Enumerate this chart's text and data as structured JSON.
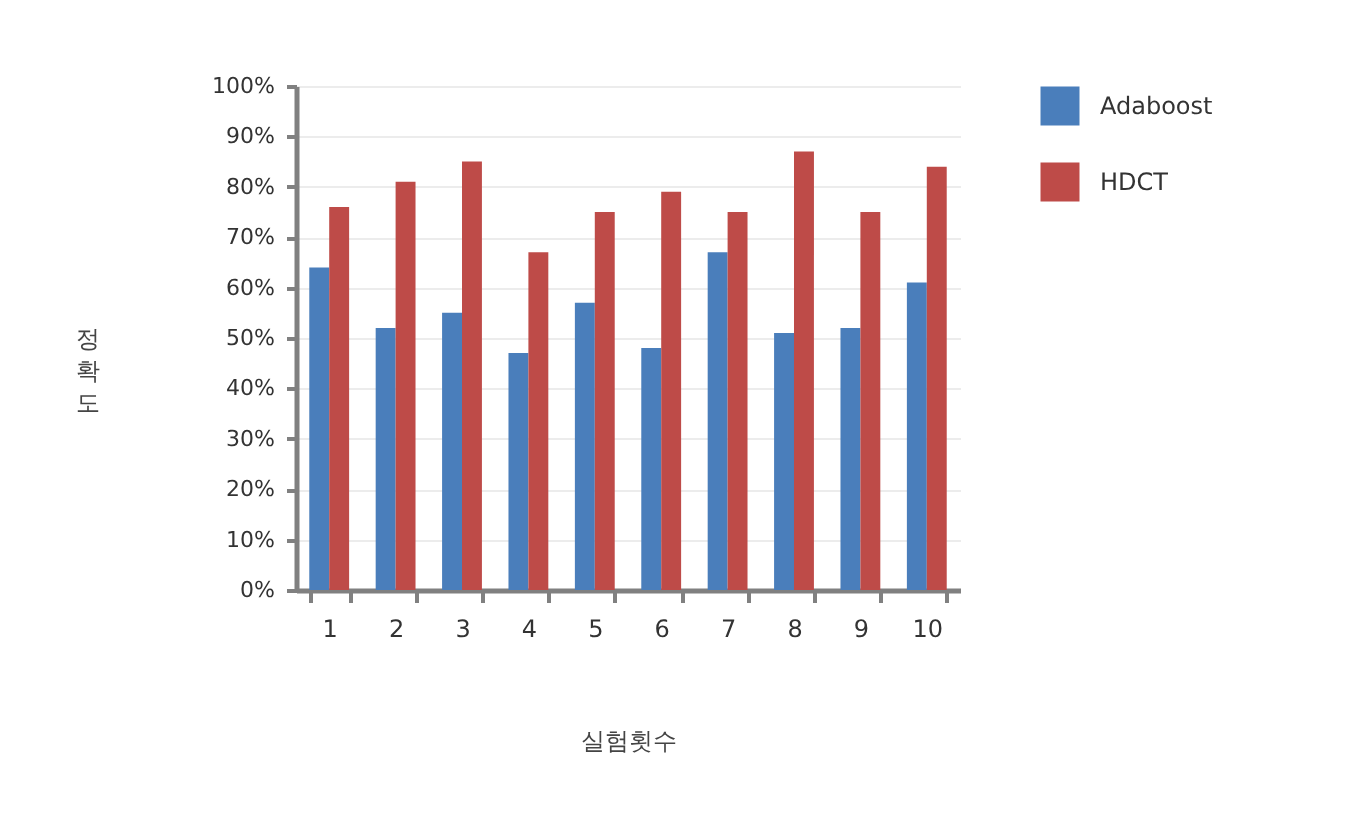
{
  "chart_data": {
    "type": "bar",
    "xlabel": "실험횟수",
    "ylabel": "정확도",
    "categories": [
      "1",
      "2",
      "3",
      "4",
      "5",
      "6",
      "7",
      "8",
      "9",
      "10"
    ],
    "series": [
      {
        "name": "Adaboost",
        "color": "#4a7ebb",
        "values": [
          64,
          52,
          55,
          47,
          57,
          48,
          67,
          51,
          52,
          61
        ]
      },
      {
        "name": "HDCT",
        "color": "#be4b48",
        "values": [
          76,
          81,
          85,
          67,
          75,
          79,
          75,
          87,
          75,
          84
        ]
      }
    ],
    "ylim": [
      0,
      100
    ],
    "yticks": [
      {
        "value": 0,
        "label": "0%"
      },
      {
        "value": 10,
        "label": "10%"
      },
      {
        "value": 20,
        "label": "20%"
      },
      {
        "value": 30,
        "label": "30%"
      },
      {
        "value": 40,
        "label": "40%"
      },
      {
        "value": 50,
        "label": "50%"
      },
      {
        "value": 60,
        "label": "60%"
      },
      {
        "value": 70,
        "label": "70%"
      },
      {
        "value": 80,
        "label": "80%"
      },
      {
        "value": 90,
        "label": "90%"
      },
      {
        "value": 100,
        "label": "100%"
      }
    ],
    "grid": "y",
    "legend": "right"
  }
}
